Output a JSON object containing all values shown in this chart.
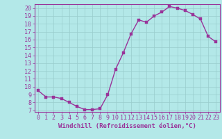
{
  "x": [
    0,
    1,
    2,
    3,
    4,
    5,
    6,
    7,
    8,
    9,
    10,
    11,
    12,
    13,
    14,
    15,
    16,
    17,
    18,
    19,
    20,
    21,
    22,
    23
  ],
  "y": [
    9.5,
    8.7,
    8.7,
    8.5,
    8.0,
    7.5,
    7.1,
    7.1,
    7.2,
    9.0,
    12.2,
    14.3,
    16.7,
    18.5,
    18.2,
    19.0,
    19.5,
    20.2,
    20.0,
    19.7,
    19.2,
    18.6,
    16.4,
    15.7
  ],
  "line_color": "#993399",
  "marker_color": "#993399",
  "bg_color": "#b3e8e8",
  "grid_color": "#99cccc",
  "xlabel": "Windchill (Refroidissement éolien,°C)",
  "xlim": [
    -0.5,
    23.5
  ],
  "ylim": [
    6.8,
    20.5
  ],
  "yticks": [
    7,
    8,
    9,
    10,
    11,
    12,
    13,
    14,
    15,
    16,
    17,
    18,
    19,
    20
  ],
  "xticks": [
    0,
    1,
    2,
    3,
    4,
    5,
    6,
    7,
    8,
    9,
    10,
    11,
    12,
    13,
    14,
    15,
    16,
    17,
    18,
    19,
    20,
    21,
    22,
    23
  ],
  "axis_color": "#993399",
  "tick_label_color": "#993399",
  "xlabel_fontsize": 6.5,
  "tick_fontsize": 6,
  "marker_size": 2.5,
  "line_width": 1.0
}
